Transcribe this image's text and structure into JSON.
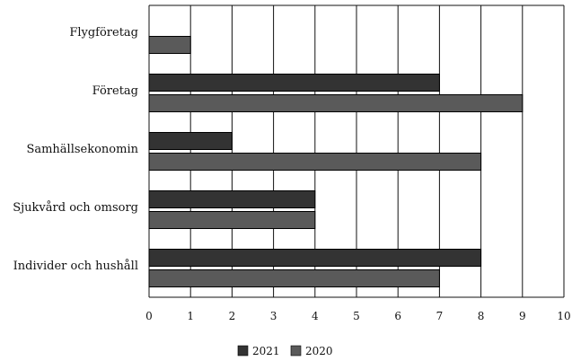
{
  "chart_data": {
    "type": "bar",
    "orientation": "horizontal",
    "categories": [
      "Flygföretag",
      "Företag",
      "Samhällsekonomin",
      "Sjukvård och omsorg",
      "Individer och hushåll"
    ],
    "series": [
      {
        "name": "2021",
        "values": [
          null,
          7,
          2,
          4,
          8
        ],
        "color": "#333333"
      },
      {
        "name": "2020",
        "values": [
          1,
          9,
          8,
          4,
          7
        ],
        "color": "#5a5a5a"
      }
    ],
    "x_ticks": [
      "0",
      "1",
      "2",
      "3",
      "4",
      "5",
      "6",
      "7",
      "8",
      "9",
      "10"
    ],
    "xlim": [
      0,
      10
    ],
    "grid": true,
    "legend_position": "bottom-center"
  }
}
